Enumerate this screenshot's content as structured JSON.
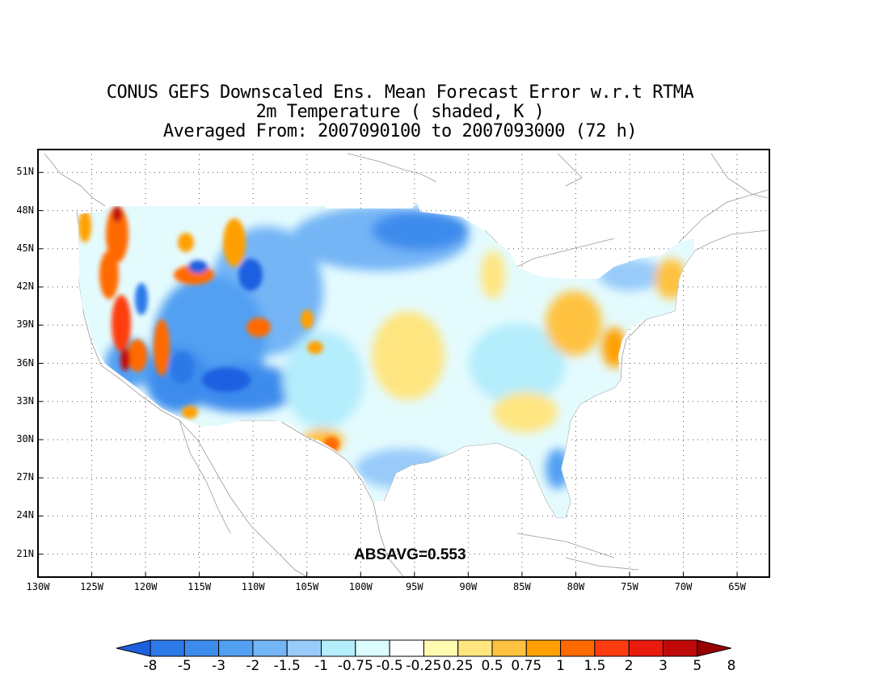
{
  "title": {
    "line1": "CONUS GEFS Downscaled Ens. Mean Forecast Error w.r.t RTMA",
    "line2": "2m Temperature ( shaded, K )",
    "line3": "Averaged From: 2007090100 to 2007093000 (72 h)"
  },
  "map": {
    "lat_labels": [
      "51N",
      "48N",
      "45N",
      "42N",
      "39N",
      "36N",
      "33N",
      "30N",
      "27N",
      "24N",
      "21N"
    ],
    "lon_labels": [
      "130W",
      "125W",
      "120W",
      "115W",
      "110W",
      "105W",
      "100W",
      "95W",
      "90W",
      "85W",
      "80W",
      "75W",
      "70W",
      "65W"
    ],
    "lon_range": [
      -130,
      -62
    ],
    "lat_range": [
      19.2,
      52.8
    ],
    "grid": "dotted",
    "annotation": "ABSAVG=0.553"
  },
  "colorbar": {
    "labels": [
      "-8",
      "-5",
      "-3",
      "-2",
      "-1.5",
      "-1",
      "-0.75",
      "-0.5",
      "-0.25",
      "0.25",
      "0.5",
      "0.75",
      "1",
      "1.5",
      "2",
      "3",
      "5",
      "8"
    ],
    "colors": [
      "#1e5fe0",
      "#2c79e8",
      "#3d8ced",
      "#52a0f2",
      "#74b5f6",
      "#98cbfa",
      "#b4edfc",
      "#dcfdfe",
      "#ffffff",
      "#fffbb0",
      "#ffe580",
      "#ffc240",
      "#ffa000",
      "#ff6a00",
      "#ff3c10",
      "#e81b0e",
      "#c00a0a",
      "#960000"
    ]
  }
}
